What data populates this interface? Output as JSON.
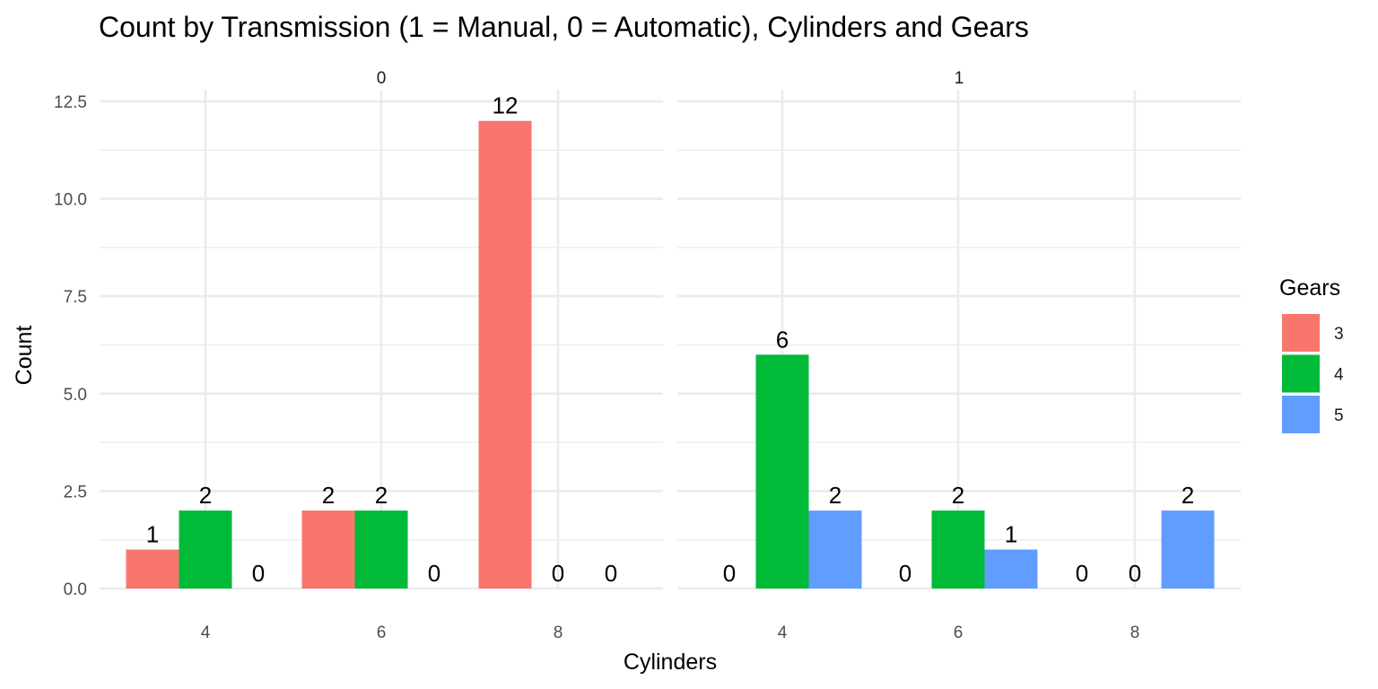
{
  "chart_data": {
    "type": "bar",
    "title": "Count by Transmission (1 = Manual, 0 = Automatic), Cylinders and Gears",
    "xlabel": "Cylinders",
    "ylabel": "Count",
    "ylim": [
      0,
      12.5
    ],
    "y_ticks": [
      "0.0",
      "2.5",
      "5.0",
      "7.5",
      "10.0",
      "12.5"
    ],
    "y_tick_values": [
      0,
      2.5,
      5,
      7.5,
      10,
      12.5
    ],
    "grid": true,
    "legend": {
      "title": "Gears",
      "placement": "right",
      "entries": [
        "3",
        "4",
        "5"
      ]
    },
    "categories": [
      "4",
      "6",
      "8"
    ],
    "colors": {
      "3": "#F8766D",
      "4": "#00BA38",
      "5": "#619CFF"
    },
    "facets": [
      {
        "label": "0",
        "series": [
          {
            "name": "3",
            "values": [
              1,
              2,
              12
            ]
          },
          {
            "name": "4",
            "values": [
              2,
              2,
              0
            ]
          },
          {
            "name": "5",
            "values": [
              0,
              0,
              0
            ]
          }
        ]
      },
      {
        "label": "1",
        "series": [
          {
            "name": "3",
            "values": [
              0,
              0,
              0
            ]
          },
          {
            "name": "4",
            "values": [
              6,
              2,
              0
            ]
          },
          {
            "name": "5",
            "values": [
              2,
              1,
              2
            ]
          }
        ]
      }
    ]
  }
}
